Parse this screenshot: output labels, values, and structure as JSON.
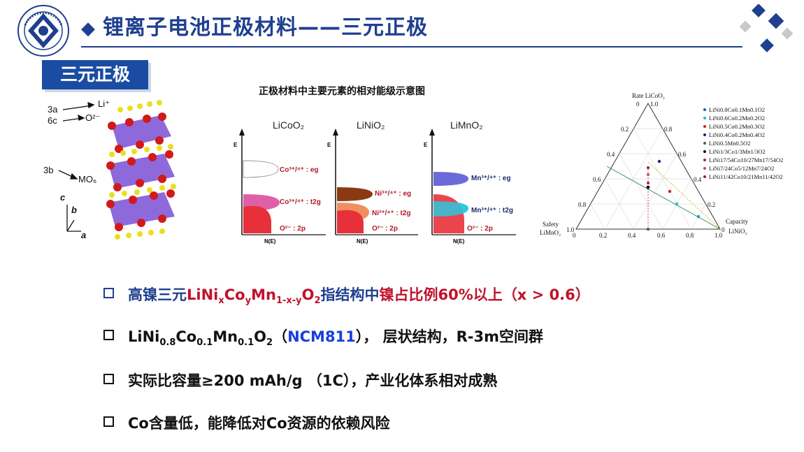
{
  "header": {
    "title": "锂离子电池正极材料——三元正极"
  },
  "section_label": "三元正极",
  "crystal": {
    "labels": {
      "site_3a": "3a",
      "site_6c": "6c",
      "li": "Li⁺",
      "o": "O²⁻",
      "site_3b": "3b",
      "mo6": "MO₆"
    },
    "axes": {
      "c": "c",
      "b": "b",
      "a": "a"
    }
  },
  "energy_diagram": {
    "title": "正极材料中主要元素的相对能级示意图",
    "axis_y": "E",
    "axis_x": "N(E)",
    "panels": [
      {
        "name": "LiCoO₂",
        "upper": "Co³⁺/⁴⁺ : eg",
        "middle": "Co³⁺/⁴⁺ : t2g",
        "lower": "O²⁻ : 2p"
      },
      {
        "name": "LiNiO₂",
        "upper": "Ni³⁺/⁴⁺ : eg",
        "middle": "Ni³⁺/⁴⁺ : t2g",
        "lower": "O²⁻ : 2p"
      },
      {
        "name": "LiMnO₂",
        "upper": "Mn³⁺/⁴⁺ : eg",
        "middle": "Mn³⁺/⁴⁺ : t2g",
        "lower": "O²⁻ : 2p"
      }
    ]
  },
  "ternary": {
    "top_label": "Rate LiCoO₂",
    "left_label_1": "Safety",
    "left_label_2": "LiMnO₂",
    "right_label_1": "Capacity",
    "right_label_2": "LiNiO₂",
    "ticks": [
      "0",
      "0.2",
      "0.4",
      "0.6",
      "0.8",
      "1.0"
    ],
    "legend": [
      {
        "label": "LiNi0.8Co0.1Mn0.1O2",
        "color": "#1f5fa8"
      },
      {
        "label": "LiNi0.6Co0.2Mn0.2O2",
        "color": "#28b5c8"
      },
      {
        "label": "LiNi0.5Co0.2Mn0.3O2",
        "color": "#d0202a"
      },
      {
        "label": "LiNi0.4Co0.2Mn0.4O2",
        "color": "#1a237e"
      },
      {
        "label": "LiNi0.5Mn0.5O2",
        "color": "#3e6b3e"
      },
      {
        "label": "LiNi1/3Co1/3Mn1/3O2",
        "color": "#111111"
      },
      {
        "label": "LiNi17/54Co10/27Mn17/54O2",
        "color": "#b21e4b"
      },
      {
        "label": "LiNi7/24Co5/12Mn7/24O2",
        "color": "#c9486f"
      },
      {
        "label": "LiNi11/42Co10/21Mn11/42O2",
        "color": "#8e2042"
      }
    ]
  },
  "bullets": {
    "b1": {
      "a": "高镍三元",
      "formula": "LiNixCoyMn1-x-yO2",
      "b": "指结构中",
      "c": "镍占比例60%以上",
      "d": "（x > 0.6）"
    },
    "b2": {
      "formula": "LiNi0.8Co0.1Mn0.1O2",
      "open": "（",
      "ncm": "NCM811",
      "rest": "）， 层状结构，R-3m空间群"
    },
    "b3": {
      "text": "实际比容量≥200 mAh/g （1C），产业化体系相对成熟"
    },
    "b4": {
      "text": "Co含量低，能降低对Co资源的依赖风险"
    }
  }
}
